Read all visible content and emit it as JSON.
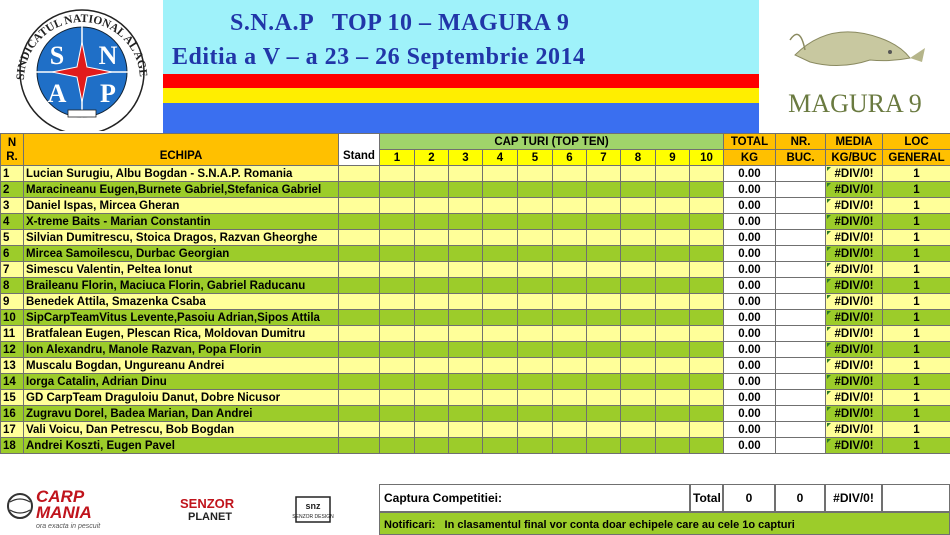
{
  "header": {
    "title_line1": "S.N.A.P   TOP 10 – MAGURA 9",
    "title_line2": "Editia a V – a 23 – 26 Septembrie 2014",
    "snap_logo": {
      "arc_text": "SINDICATUL NATIONAL AL AGENTILOR DE POLITIE",
      "letters": [
        "S",
        "N",
        "A",
        "P"
      ]
    },
    "magura_logo": {
      "text": "MAGURA 9"
    },
    "flag_colors": [
      "#ff0000",
      "#ffee00",
      "#3a6ff0"
    ]
  },
  "table": {
    "headers": {
      "nr": "N R.",
      "echipa": "ECHIPA",
      "stand": "Stand",
      "cap_turi": "CAP TURI (TOP TEN)",
      "total": "TOTAL",
      "total_unit": "KG",
      "nr_buc": "NR.",
      "nr_buc_unit": "BUC.",
      "media": "MEDIA",
      "media_unit": "KG/BUC",
      "loc": "LOC",
      "loc_unit": "GENERAL",
      "capture_numbers": [
        "1",
        "2",
        "3",
        "4",
        "5",
        "6",
        "7",
        "8",
        "9",
        "10"
      ]
    },
    "rows": [
      {
        "nr": "1",
        "echipa": "Lucian Surugiu, Albu Bogdan - S.N.A.P. Romania",
        "kg": "0.00",
        "media": "#DIV/0!",
        "loc": "1"
      },
      {
        "nr": "2",
        "echipa": "Maracineanu Eugen,Burnete Gabriel,Stefanica Gabriel",
        "kg": "0.00",
        "media": "#DIV/0!",
        "loc": "1"
      },
      {
        "nr": "3",
        "echipa": "Daniel Ispas,  Mircea Gheran",
        "kg": "0.00",
        "media": "#DIV/0!",
        "loc": "1"
      },
      {
        "nr": "4",
        "echipa": "X-treme Baits - Marian Constantin",
        "kg": "0.00",
        "media": "#DIV/0!",
        "loc": "1"
      },
      {
        "nr": "5",
        "echipa": "Silvian Dumitrescu, Stoica Dragos, Razvan Gheorghe",
        "kg": "0.00",
        "media": "#DIV/0!",
        "loc": "1"
      },
      {
        "nr": "6",
        "echipa": "Mircea Samoilescu, Durbac Georgian",
        "kg": "0.00",
        "media": "#DIV/0!",
        "loc": "1"
      },
      {
        "nr": "7",
        "echipa": "Simescu Valentin, Peltea Ionut",
        "kg": "0.00",
        "media": "#DIV/0!",
        "loc": "1"
      },
      {
        "nr": "8",
        "echipa": "Braileanu Florin, Maciuca Florin, Gabriel Raducanu",
        "kg": "0.00",
        "media": "#DIV/0!",
        "loc": "1"
      },
      {
        "nr": "9",
        "echipa": "Benedek Attila, Smazenka Csaba",
        "kg": "0.00",
        "media": "#DIV/0!",
        "loc": "1"
      },
      {
        "nr": "10",
        "echipa": "SipCarpTeamVitus Levente,Pasoiu Adrian,Sipos Attila",
        "kg": "0.00",
        "media": "#DIV/0!",
        "loc": "1"
      },
      {
        "nr": "11",
        "echipa": "Bratfalean Eugen, Plescan Rica, Moldovan Dumitru",
        "kg": "0.00",
        "media": "#DIV/0!",
        "loc": "1"
      },
      {
        "nr": "12",
        "echipa": "Ion Alexandru, Manole Razvan, Popa Florin",
        "kg": "0.00",
        "media": "#DIV/0!",
        "loc": "1"
      },
      {
        "nr": "13",
        "echipa": "Muscalu Bogdan, Ungureanu Andrei",
        "kg": "0.00",
        "media": "#DIV/0!",
        "loc": "1"
      },
      {
        "nr": "14",
        "echipa": "Iorga Catalin, Adrian Dinu",
        "kg": "0.00",
        "media": "#DIV/0!",
        "loc": "1"
      },
      {
        "nr": "15",
        "echipa": "GD CarpTeam  Draguloiu Danut, Dobre Nicusor",
        "kg": "0.00",
        "media": "#DIV/0!",
        "loc": "1"
      },
      {
        "nr": "16",
        "echipa": "Zugravu Dorel, Badea Marian, Dan Andrei",
        "kg": "0.00",
        "media": "#DIV/0!",
        "loc": "1"
      },
      {
        "nr": "17",
        "echipa": "Vali Voicu, Dan Petrescu, Bob Bogdan",
        "kg": "0.00",
        "media": "#DIV/0!",
        "loc": "1"
      },
      {
        "nr": "18",
        "echipa": "Andrei Koszti, Eugen Pavel",
        "kg": "0.00",
        "media": "#DIV/0!",
        "loc": "1"
      }
    ]
  },
  "footer": {
    "captura_label": "Captura Competitiei:",
    "total_label": "Total",
    "total_kg": "0",
    "total_buc": "0",
    "total_media": "#DIV/0!",
    "notificari_label": "Notificari:",
    "notificari_text": "In clasamentul final vor conta doar echipele care au cele 1o capturi",
    "sponsors": {
      "carpmania": "CARP MANIA",
      "carpmania_tagline": "ora exacta in pescuit",
      "senzor": "SENZOR PLANET",
      "snz": "SNZ SENZOR DESIGN"
    }
  },
  "colors": {
    "header_orange": "#ffc000",
    "cap_green": "#a0d46a",
    "row_yellow": "#ffff99",
    "row_green": "#9ccc2a",
    "title_blue": "#2136a8",
    "title_band": "#9ff2fa"
  }
}
